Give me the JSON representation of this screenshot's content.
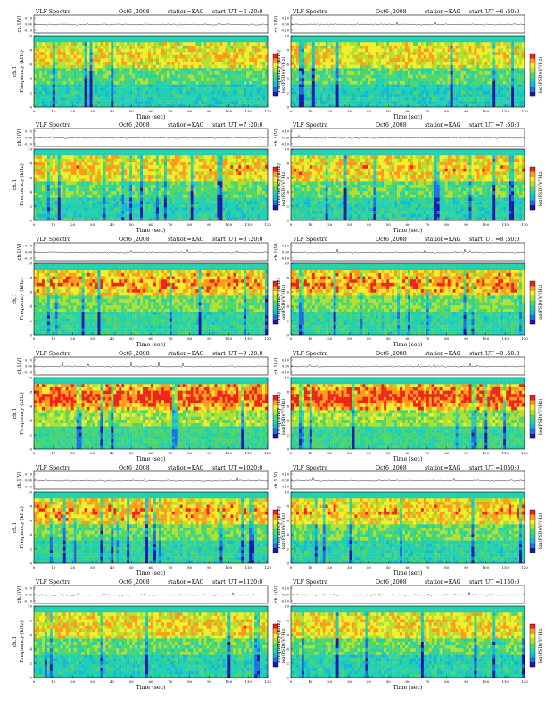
{
  "chart_data": [
    {
      "type": "heatmap",
      "title": "VLF Spectra",
      "date": "Oct6 ,2008",
      "station": "station=KAG",
      "start_label": "start",
      "ut": "UT =6 :20:0",
      "xlabel": "Time (sec)",
      "ylabel": "Frequency (kHz)",
      "ch_label": "ch.1",
      "top_ylabel": "ch.1(V)",
      "colorbar_label": "log(PSD)(V²/Hz)",
      "x_ticks": [
        "0",
        "10",
        "20",
        "30",
        "40",
        "50",
        "60",
        "70",
        "80",
        "90",
        "100",
        "110",
        "120"
      ],
      "y_ticks": [
        "0",
        "2",
        "4",
        "6",
        "8",
        "10"
      ],
      "top_ticks": [
        "0.10",
        "0.00",
        "-0.10"
      ],
      "xlim": [
        0,
        120
      ],
      "ylim": [
        0,
        10
      ],
      "intensity": 0.35,
      "seed": 11
    },
    {
      "type": "heatmap",
      "title": "VLF Spectra",
      "date": "Oct6 ,2008",
      "station": "station=KAG",
      "start_label": "start",
      "ut": "UT =6 :50:0",
      "xlabel": "Time (sec)",
      "ylabel": "Frequency (kHz)",
      "ch_label": "ch.1",
      "top_ylabel": "ch.1(V)",
      "colorbar_label": "log(PSD)(V²/Hz)",
      "x_ticks": [
        "0",
        "10",
        "20",
        "30",
        "40",
        "50",
        "60",
        "70",
        "80",
        "90",
        "100",
        "110",
        "120"
      ],
      "y_ticks": [
        "0",
        "2",
        "4",
        "6",
        "8",
        "10"
      ],
      "top_ticks": [
        "0.10",
        "0.00",
        "-0.10"
      ],
      "xlim": [
        0,
        120
      ],
      "ylim": [
        0,
        10
      ],
      "intensity": 0.35,
      "seed": 23
    },
    {
      "type": "heatmap",
      "title": "VLF Spectra",
      "date": "Oct6 ,2008",
      "station": "station=KAG",
      "start_label": "start",
      "ut": "UT =7 :20:0",
      "xlabel": "Time (sec)",
      "ylabel": "Frequency (kHz)",
      "ch_label": "ch.1",
      "top_ylabel": "ch.1(V)",
      "colorbar_label": "log(PSD)(V²/Hz)",
      "x_ticks": [
        "0",
        "10",
        "20",
        "30",
        "40",
        "50",
        "60",
        "70",
        "80",
        "90",
        "100",
        "110",
        "120"
      ],
      "y_ticks": [
        "0",
        "2",
        "4",
        "6",
        "8",
        "10"
      ],
      "top_ticks": [
        "0.10",
        "0.00",
        "-0.10"
      ],
      "xlim": [
        0,
        120
      ],
      "ylim": [
        0,
        10
      ],
      "intensity": 0.45,
      "seed": 37
    },
    {
      "type": "heatmap",
      "title": "VLF Spectra",
      "date": "Oct6 ,2008",
      "station": "station=KAG",
      "start_label": "start",
      "ut": "UT =7 :50:0",
      "xlabel": "Time (sec)",
      "ylabel": "Frequency (kHz)",
      "ch_label": "ch.1",
      "top_ylabel": "ch.1(V)",
      "colorbar_label": "log(PSD)(V²/Hz)",
      "x_ticks": [
        "0",
        "10",
        "20",
        "30",
        "40",
        "50",
        "60",
        "70",
        "80",
        "90",
        "100",
        "110",
        "120"
      ],
      "y_ticks": [
        "0",
        "2",
        "4",
        "6",
        "8",
        "10"
      ],
      "top_ticks": [
        "0.10",
        "0.00",
        "-0.10"
      ],
      "xlim": [
        0,
        120
      ],
      "ylim": [
        0,
        10
      ],
      "intensity": 0.45,
      "seed": 41
    },
    {
      "type": "heatmap",
      "title": "VLF Spectra",
      "date": "Oct6 ,2008",
      "station": "station=KAG",
      "start_label": "start",
      "ut": "UT =8 :20:0",
      "xlabel": "Time (sec)",
      "ylabel": "Frequency (kHz)",
      "ch_label": "ch.1",
      "top_ylabel": "ch.1(V)",
      "colorbar_label": "log(PSD)(V²/Hz)",
      "x_ticks": [
        "0",
        "10",
        "20",
        "30",
        "40",
        "50",
        "60",
        "70",
        "80",
        "90",
        "100",
        "110",
        "120"
      ],
      "y_ticks": [
        "0",
        "2",
        "4",
        "6",
        "8",
        "10"
      ],
      "top_ticks": [
        "0.10",
        "0.00",
        "-0.10"
      ],
      "xlim": [
        0,
        120
      ],
      "ylim": [
        0,
        10
      ],
      "intensity": 0.6,
      "seed": 53
    },
    {
      "type": "heatmap",
      "title": "VLF Spectra",
      "date": "Oct6 ,2008",
      "station": "station=KAG",
      "start_label": "start",
      "ut": "UT =8 :50:0",
      "xlabel": "Time (sec)",
      "ylabel": "Frequency (kHz)",
      "ch_label": "ch.1",
      "top_ylabel": "ch.1(V)",
      "colorbar_label": "log(PSD)(V²/Hz)",
      "x_ticks": [
        "0",
        "10",
        "20",
        "30",
        "40",
        "50",
        "60",
        "70",
        "80",
        "90",
        "100",
        "110",
        "120"
      ],
      "y_ticks": [
        "0",
        "2",
        "4",
        "6",
        "8",
        "10"
      ],
      "top_ticks": [
        "0.10",
        "0.00",
        "-0.10"
      ],
      "xlim": [
        0,
        120
      ],
      "ylim": [
        0,
        10
      ],
      "intensity": 0.6,
      "seed": 61
    },
    {
      "type": "heatmap",
      "title": "VLF Spectra",
      "date": "Oct6 ,2008",
      "station": "station=KAG",
      "start_label": "start",
      "ut": "UT =9 :20:0",
      "xlabel": "Time (sec)",
      "ylabel": "Frequency (kHz)",
      "ch_label": "ch.1",
      "top_ylabel": "ch.1(V)",
      "colorbar_label": "log(PSD)(V²/Hz)",
      "x_ticks": [
        "0",
        "10",
        "20",
        "30",
        "40",
        "50",
        "60",
        "70",
        "80",
        "90",
        "100",
        "110",
        "120"
      ],
      "y_ticks": [
        "0",
        "2",
        "4",
        "6",
        "8",
        "10"
      ],
      "top_ticks": [
        "0.10",
        "0.00",
        "-0.10"
      ],
      "xlim": [
        0,
        120
      ],
      "ylim": [
        0,
        10
      ],
      "intensity": 0.8,
      "seed": 71
    },
    {
      "type": "heatmap",
      "title": "VLF Spectra",
      "date": "Oct6 ,2008",
      "station": "station=KAG",
      "start_label": "start",
      "ut": "UT =9 :50:0",
      "xlabel": "Time (sec)",
      "ylabel": "Frequency (kHz)",
      "ch_label": "ch.1",
      "top_ylabel": "ch.1(V)",
      "colorbar_label": "log(PSD)(V²/Hz)",
      "x_ticks": [
        "0",
        "10",
        "20",
        "30",
        "40",
        "50",
        "60",
        "70",
        "80",
        "90",
        "100",
        "110",
        "120"
      ],
      "y_ticks": [
        "0",
        "2",
        "4",
        "6",
        "8",
        "10"
      ],
      "top_ticks": [
        "0.10",
        "0.00",
        "-0.10"
      ],
      "xlim": [
        0,
        120
      ],
      "ylim": [
        0,
        10
      ],
      "intensity": 0.8,
      "seed": 83
    },
    {
      "type": "heatmap",
      "title": "VLF Spectra",
      "date": "Oct6 ,2008",
      "station": "station=KAG",
      "start_label": "start",
      "ut": "UT =1020:0",
      "xlabel": "Time (sec)",
      "ylabel": "Frequency (kHz)",
      "ch_label": "ch.1",
      "top_ylabel": "ch.1(V)",
      "colorbar_label": "log(PSD)(V²/Hz)",
      "x_ticks": [
        "0",
        "10",
        "20",
        "30",
        "40",
        "50",
        "60",
        "70",
        "80",
        "90",
        "100",
        "110",
        "120"
      ],
      "y_ticks": [
        "0",
        "2",
        "4",
        "6",
        "8",
        "10"
      ],
      "top_ticks": [
        "0.10",
        "0.00",
        "-0.10"
      ],
      "xlim": [
        0,
        120
      ],
      "ylim": [
        0,
        10
      ],
      "intensity": 0.55,
      "seed": 97
    },
    {
      "type": "heatmap",
      "title": "VLF Spectra",
      "date": "Oct6 ,2008",
      "station": "station=KAG",
      "start_label": "start",
      "ut": "UT =1050:0",
      "xlabel": "Time (sec)",
      "ylabel": "Frequency (kHz)",
      "ch_label": "ch.1",
      "top_ylabel": "ch.1(V)",
      "colorbar_label": "log(PSD)(V²/Hz)",
      "x_ticks": [
        "0",
        "10",
        "20",
        "30",
        "40",
        "50",
        "60",
        "70",
        "80",
        "90",
        "100",
        "110",
        "120"
      ],
      "y_ticks": [
        "0",
        "2",
        "4",
        "6",
        "8",
        "10"
      ],
      "top_ticks": [
        "0.10",
        "0.00",
        "-0.10"
      ],
      "xlim": [
        0,
        120
      ],
      "ylim": [
        0,
        10
      ],
      "intensity": 0.5,
      "seed": 101
    },
    {
      "type": "heatmap",
      "title": "VLF Spectra",
      "date": "Oct6 ,2008",
      "station": "station=KAG",
      "start_label": "start",
      "ut": "UT =1120:0",
      "xlabel": "Time (sec)",
      "ylabel": "Frequency (kHz)",
      "ch_label": "ch.1",
      "top_ylabel": "ch.1(V)",
      "colorbar_label": "log(PSD)(V²/Hz)",
      "x_ticks": [
        "0",
        "10",
        "20",
        "30",
        "40",
        "50",
        "60",
        "70",
        "80",
        "90",
        "100",
        "110",
        "120"
      ],
      "y_ticks": [
        "0",
        "2",
        "4",
        "6",
        "8",
        "10"
      ],
      "top_ticks": [
        "0.10",
        "0.00",
        "-0.10"
      ],
      "xlim": [
        0,
        120
      ],
      "ylim": [
        0,
        10
      ],
      "intensity": 0.4,
      "seed": 113
    },
    {
      "type": "heatmap",
      "title": "VLF Spectra",
      "date": "Oct6 ,2008",
      "station": "station=KAG",
      "start_label": "start",
      "ut": "UT =1150:0",
      "xlabel": "Time (sec)",
      "ylabel": "Frequency (kHz)",
      "ch_label": "ch.1",
      "top_ylabel": "ch.1(V)",
      "colorbar_label": "log(PSD)(V²/Hz)",
      "x_ticks": [
        "0",
        "10",
        "20",
        "30",
        "40",
        "50",
        "60",
        "70",
        "80",
        "90",
        "100",
        "110",
        "120"
      ],
      "y_ticks": [
        "0",
        "2",
        "4",
        "6",
        "8",
        "10"
      ],
      "top_ticks": [
        "0.10",
        "0.00",
        "-0.10"
      ],
      "xlim": [
        0,
        120
      ],
      "ylim": [
        0,
        10
      ],
      "intensity": 0.4,
      "seed": 127
    }
  ],
  "colormap": [
    "#1a1aa8",
    "#1f6fe0",
    "#12b8d8",
    "#22d0b0",
    "#4fd66a",
    "#b0e030",
    "#f2ee2a",
    "#ff9a1a",
    "#f02318"
  ]
}
